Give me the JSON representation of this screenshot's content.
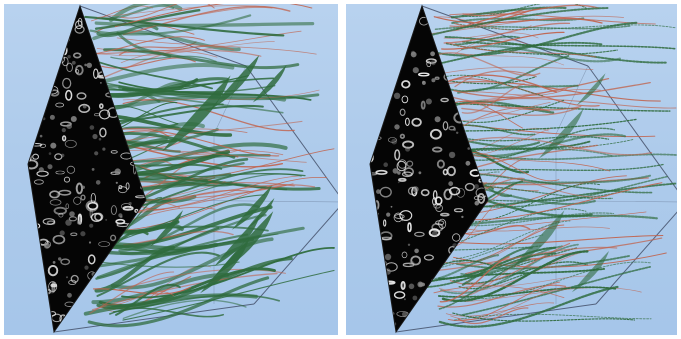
{
  "views": [
    {
      "id": "left"
    },
    {
      "id": "right"
    }
  ],
  "colors": {
    "background_top": "#b8d2ef",
    "background_bottom": "#a6c6ea",
    "cube_edge": "#3f4a63",
    "section_face": "#050505",
    "streak_green": "#2f6b3d",
    "streak_red": "#c0644f",
    "noise_white": "#e8e8e8"
  }
}
